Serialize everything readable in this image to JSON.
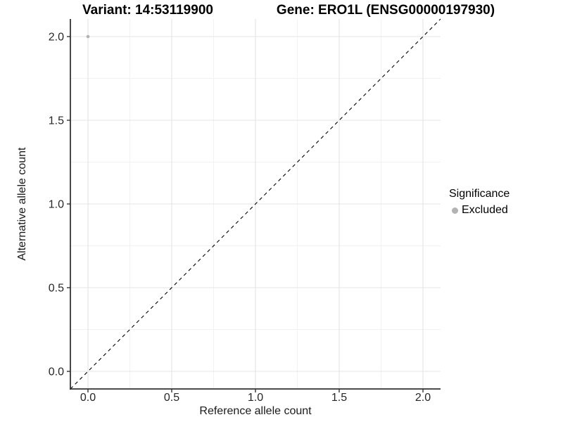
{
  "titles": {
    "variant": "Variant: 14:53119900",
    "gene": "Gene: ERO1L (ENSG00000197930)"
  },
  "chart_data": {
    "type": "scatter",
    "title_left": "Variant: 14:53119900",
    "title_right": "Gene: ERO1L (ENSG00000197930)",
    "xlabel": "Reference allele count",
    "ylabel": "Alternative allele count",
    "xlim": [
      -0.105,
      2.105
    ],
    "ylim": [
      -0.105,
      2.105
    ],
    "x_ticks": [
      0.0,
      0.5,
      1.0,
      1.5,
      2.0
    ],
    "y_ticks": [
      0.0,
      0.5,
      1.0,
      1.5,
      2.0
    ],
    "x_minor_ticks": [
      0.25,
      0.75,
      1.25,
      1.75
    ],
    "y_minor_ticks": [
      0.25,
      0.75,
      1.25,
      1.75
    ],
    "tick_label_format_decimals": 1,
    "grid": true,
    "series": [
      {
        "name": "Excluded",
        "points": [
          {
            "x": 0.0,
            "y": 2.0
          }
        ],
        "color": "#b3b3b3"
      }
    ],
    "reference_line": {
      "type": "identity",
      "style": "dashed",
      "color": "#000000"
    },
    "legend": {
      "title": "Significance",
      "position": "right",
      "items": [
        {
          "label": "Excluded",
          "color": "#b3b3b3",
          "marker": "circle"
        }
      ]
    },
    "colors": {
      "background": "#ffffff",
      "grid_major": "#e4e4e4",
      "grid_minor": "#f1f1f1",
      "axis_line": "#333333",
      "tick_mark": "#333333",
      "tick_text": "#262626",
      "point": "#b3b3b3",
      "ref_line": "#000000"
    }
  }
}
